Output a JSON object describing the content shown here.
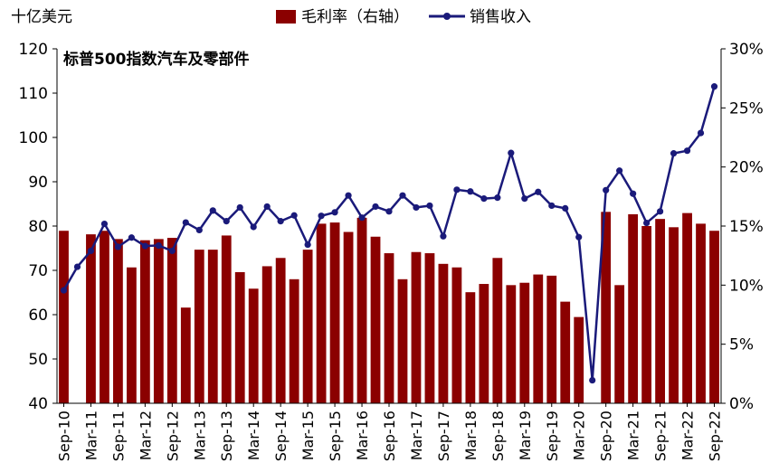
{
  "chart_data": {
    "type": "bar+line",
    "title": "标普500指数汽车及零部件",
    "left_axis_label": "十亿美元",
    "y_left_lim": [
      40,
      120
    ],
    "y_left_ticks": [
      "40",
      "50",
      "60",
      "70",
      "80",
      "90",
      "100",
      "110",
      "120"
    ],
    "y_right_lim": [
      0,
      30
    ],
    "y_right_ticks": [
      "0%",
      "5%",
      "10%",
      "15%",
      "20%",
      "25%",
      "30%"
    ],
    "grid": false,
    "legend_position": "top-center",
    "x_tick_labels": [
      "Sep-10",
      "Mar-11",
      "Sep-11",
      "Mar-12",
      "Sep-12",
      "Mar-13",
      "Sep-13",
      "Mar-14",
      "Sep-14",
      "Mar-15",
      "Sep-15",
      "Mar-16",
      "Sep-16",
      "Mar-17",
      "Sep-17",
      "Mar-18",
      "Sep-18",
      "Mar-19",
      "Sep-19",
      "Mar-20",
      "Sep-20",
      "Mar-21",
      "Sep-21",
      "Mar-22",
      "Sep-22"
    ],
    "x": [
      "Sep-10",
      "Dec-10",
      "Mar-11",
      "Jun-11",
      "Sep-11",
      "Dec-11",
      "Mar-12",
      "Jun-12",
      "Sep-12",
      "Dec-12",
      "Mar-13",
      "Jun-13",
      "Sep-13",
      "Dec-13",
      "Mar-14",
      "Jun-14",
      "Sep-14",
      "Dec-14",
      "Mar-15",
      "Jun-15",
      "Sep-15",
      "Dec-15",
      "Mar-16",
      "Jun-16",
      "Sep-16",
      "Dec-16",
      "Mar-17",
      "Jun-17",
      "Sep-17",
      "Dec-17",
      "Mar-18",
      "Jun-18",
      "Sep-18",
      "Dec-18",
      "Mar-19",
      "Jun-19",
      "Sep-19",
      "Dec-19",
      "Mar-20",
      "Jun-20",
      "Sep-20",
      "Dec-20",
      "Mar-21",
      "Jun-21",
      "Sep-21",
      "Dec-21",
      "Mar-22",
      "Jun-22",
      "Sep-22"
    ],
    "series": [
      {
        "name": "毛利率（右轴）",
        "type": "bar",
        "axis": "right",
        "color": "#8B0000",
        "values": [
          14.6,
          0,
          14.3,
          14.6,
          13.9,
          11.5,
          13.8,
          13.9,
          14.0,
          8.1,
          13.0,
          13.0,
          14.2,
          11.1,
          9.7,
          11.6,
          12.3,
          10.5,
          13.0,
          15.2,
          15.3,
          14.5,
          15.7,
          14.1,
          12.7,
          10.5,
          12.8,
          12.7,
          11.8,
          11.5,
          9.4,
          10.1,
          12.3,
          10.0,
          10.2,
          10.9,
          10.8,
          8.6,
          7.3,
          0,
          16.2,
          10.0,
          16.0,
          15.0,
          15.6,
          14.9,
          16.1,
          15.2,
          14.6
        ]
      },
      {
        "name": "销售收入",
        "type": "line",
        "axis": "left",
        "color": "#1a1a7a",
        "values": [
          65.5,
          70.8,
          74.4,
          80.5,
          75.3,
          77.4,
          75.5,
          75.6,
          74.4,
          80.8,
          79.1,
          83.5,
          81.1,
          84.2,
          79.8,
          84.4,
          81.1,
          82.4,
          75.8,
          82.3,
          83.1,
          86.9,
          81.9,
          84.4,
          83.3,
          86.9,
          84.2,
          84.6,
          77.7,
          88.2,
          87.8,
          86.2,
          86.4,
          96.5,
          86.2,
          87.7,
          84.6,
          84.0,
          77.5,
          45.2,
          88.1,
          92.5,
          87.3,
          80.7,
          83.3,
          96.4,
          97.0,
          101.0,
          111.5
        ]
      }
    ]
  }
}
